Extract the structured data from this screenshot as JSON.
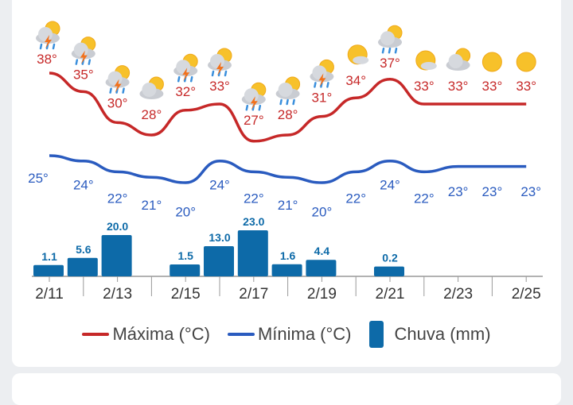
{
  "chart_data": {
    "type": "line",
    "categories": [
      "2/11",
      "2/12",
      "2/13",
      "2/14",
      "2/15",
      "2/16",
      "2/17",
      "2/18",
      "2/19",
      "2/20",
      "2/21",
      "2/22",
      "2/23",
      "2/24",
      "2/25"
    ],
    "tick_labels": [
      "2/11",
      "2/13",
      "2/15",
      "2/17",
      "2/19",
      "2/21",
      "2/23",
      "2/25"
    ],
    "series": [
      {
        "name": "Máxima (°C)",
        "type": "line",
        "color": "#c62828",
        "values": [
          38,
          35,
          30,
          28,
          32,
          33,
          27,
          28,
          31,
          34,
          37,
          33,
          33,
          33,
          33
        ]
      },
      {
        "name": "Mínima (°C)",
        "type": "line",
        "color": "#2a5bbf",
        "values": [
          25,
          24,
          22,
          21,
          20,
          24,
          22,
          21,
          20,
          22,
          24,
          22,
          23,
          23,
          23
        ]
      },
      {
        "name": "Chuva (mm)",
        "type": "bar",
        "color": "#0d6aa8",
        "values": [
          1.1,
          5.6,
          20.0,
          null,
          1.5,
          13.0,
          23.0,
          1.6,
          4.4,
          null,
          0.2,
          null,
          null,
          null,
          null
        ]
      }
    ],
    "icons": [
      "storm",
      "storm",
      "storm",
      "partly-cloudy",
      "storm",
      "storm",
      "storm",
      "rain",
      "storm",
      "mostly-sunny",
      "rain",
      "mostly-sunny",
      "partly-cloudy",
      "sunny",
      "sunny"
    ],
    "legend": [
      "Máxima (°C)",
      "Mínima (°C)",
      "Chuva (mm)"
    ],
    "legend_placement": "bottom",
    "grid": false
  }
}
